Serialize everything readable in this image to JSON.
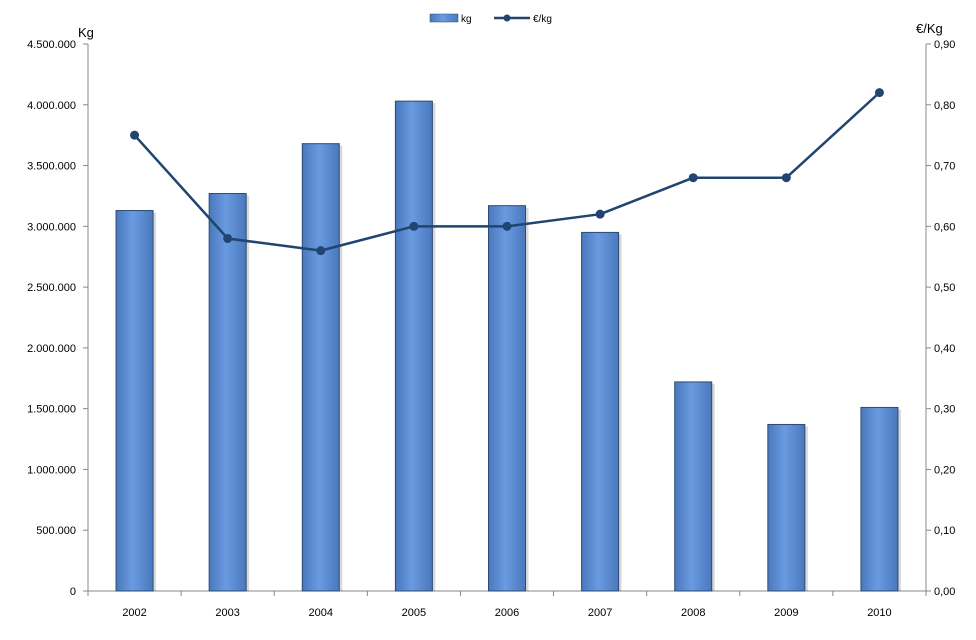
{
  "chart_data": {
    "type": "bar",
    "categories": [
      "2002",
      "2003",
      "2004",
      "2005",
      "2006",
      "2007",
      "2008",
      "2009",
      "2010"
    ],
    "series": [
      {
        "name": "kg",
        "type": "bar",
        "axis": "left",
        "values": [
          3130000,
          3270000,
          3680000,
          4030000,
          3170000,
          2950000,
          1720000,
          1370000,
          1510000
        ]
      },
      {
        "name": "€/kg",
        "type": "line",
        "axis": "right",
        "values": [
          0.75,
          0.58,
          0.56,
          0.6,
          0.6,
          0.62,
          0.68,
          0.68,
          0.82
        ]
      }
    ],
    "left_axis": {
      "label": "Kg",
      "range": [
        0,
        4500000
      ],
      "ticks": [
        "0",
        "500.000",
        "1.000.000",
        "1.500.000",
        "2.000.000",
        "2.500.000",
        "3.000.000",
        "3.500.000",
        "4.000.000",
        "4.500.000"
      ]
    },
    "right_axis": {
      "label": "€/Kg",
      "range": [
        0,
        0.9
      ],
      "ticks": [
        "0,00",
        "0,10",
        "0,20",
        "0,30",
        "0,40",
        "0,50",
        "0,60",
        "0,70",
        "0,80",
        "0,90"
      ]
    },
    "legend": {
      "position": "top",
      "entries": [
        "kg",
        "€/kg"
      ]
    },
    "grid": false,
    "colors": {
      "bar": "#5a8ad0",
      "bar_edge": "#2d4a73",
      "line": "#1f4570",
      "axis": "#888888"
    }
  }
}
